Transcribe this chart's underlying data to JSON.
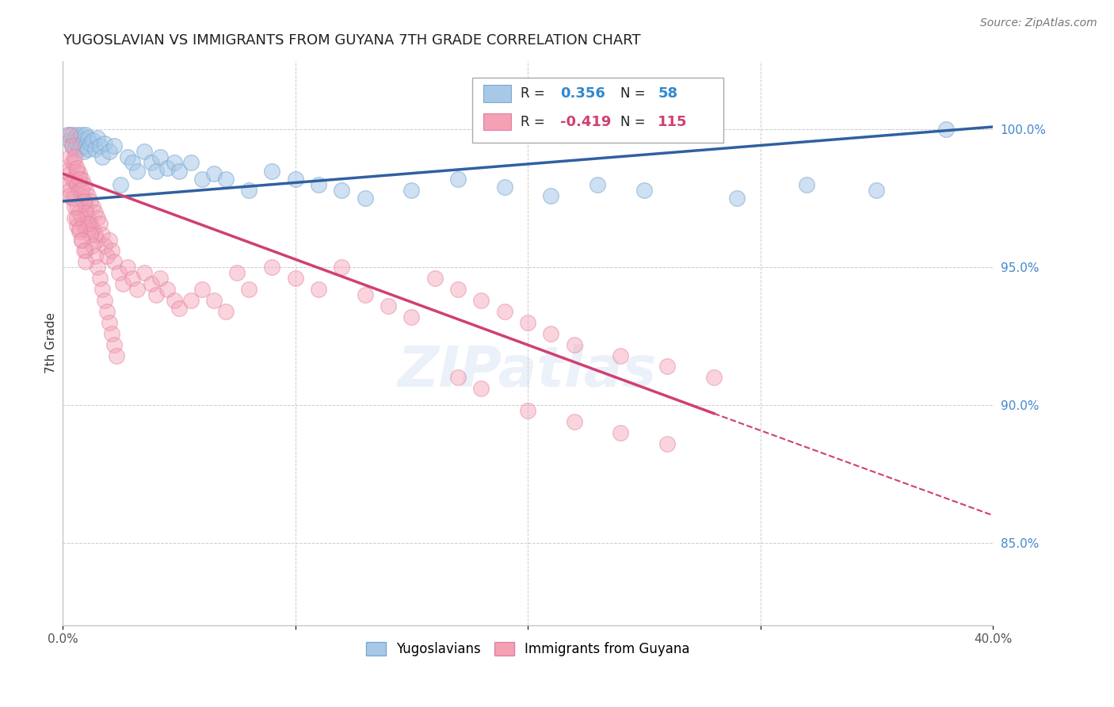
{
  "title": "YUGOSLAVIAN VS IMMIGRANTS FROM GUYANA 7TH GRADE CORRELATION CHART",
  "source_text": "Source: ZipAtlas.com",
  "ylabel": "7th Grade",
  "xlim": [
    0.0,
    0.4
  ],
  "ylim": [
    0.82,
    1.025
  ],
  "xticks": [
    0.0,
    0.1,
    0.2,
    0.3,
    0.4
  ],
  "xtick_labels": [
    "0.0%",
    "",
    "",
    "",
    "40.0%"
  ],
  "yticks": [
    0.85,
    0.9,
    0.95,
    1.0
  ],
  "ytick_labels": [
    "85.0%",
    "90.0%",
    "95.0%",
    "100.0%"
  ],
  "R_blue": 0.356,
  "N_blue": 58,
  "R_pink": -0.419,
  "N_pink": 115,
  "blue_color": "#a8c8e8",
  "pink_color": "#f4a0b5",
  "blue_line_color": "#3060a0",
  "pink_line_color": "#d04070",
  "legend_blue_label": "Yugoslavians",
  "legend_pink_label": "Immigrants from Guyana",
  "blue_line_x0": 0.0,
  "blue_line_y0": 0.974,
  "blue_line_x1": 0.4,
  "blue_line_y1": 1.001,
  "pink_line_solid_x0": 0.0,
  "pink_line_solid_y0": 0.984,
  "pink_line_solid_x1": 0.28,
  "pink_line_solid_y1": 0.897,
  "pink_line_dash_x0": 0.28,
  "pink_line_dash_y0": 0.897,
  "pink_line_dash_x1": 0.4,
  "pink_line_dash_y1": 0.86,
  "blue_x": [
    0.002,
    0.003,
    0.004,
    0.004,
    0.005,
    0.005,
    0.006,
    0.006,
    0.007,
    0.007,
    0.008,
    0.008,
    0.009,
    0.009,
    0.01,
    0.01,
    0.011,
    0.011,
    0.012,
    0.013,
    0.014,
    0.015,
    0.016,
    0.017,
    0.018,
    0.02,
    0.022,
    0.025,
    0.028,
    0.03,
    0.032,
    0.035,
    0.038,
    0.04,
    0.042,
    0.045,
    0.048,
    0.05,
    0.055,
    0.06,
    0.065,
    0.07,
    0.08,
    0.09,
    0.1,
    0.11,
    0.12,
    0.13,
    0.15,
    0.17,
    0.19,
    0.21,
    0.23,
    0.25,
    0.29,
    0.32,
    0.35,
    0.38
  ],
  "blue_y": [
    0.998,
    0.996,
    0.998,
    0.994,
    0.997,
    0.993,
    0.998,
    0.995,
    0.997,
    0.993,
    0.998,
    0.994,
    0.996,
    0.992,
    0.998,
    0.994,
    0.997,
    0.993,
    0.995,
    0.996,
    0.993,
    0.997,
    0.994,
    0.99,
    0.995,
    0.992,
    0.994,
    0.98,
    0.99,
    0.988,
    0.985,
    0.992,
    0.988,
    0.985,
    0.99,
    0.986,
    0.988,
    0.985,
    0.988,
    0.982,
    0.984,
    0.982,
    0.978,
    0.985,
    0.982,
    0.98,
    0.978,
    0.975,
    0.978,
    0.982,
    0.979,
    0.976,
    0.98,
    0.978,
    0.975,
    0.98,
    0.978,
    1.0
  ],
  "pink_x": [
    0.002,
    0.002,
    0.003,
    0.003,
    0.003,
    0.004,
    0.004,
    0.004,
    0.005,
    0.005,
    0.005,
    0.005,
    0.006,
    0.006,
    0.006,
    0.006,
    0.007,
    0.007,
    0.007,
    0.007,
    0.008,
    0.008,
    0.008,
    0.008,
    0.009,
    0.009,
    0.009,
    0.01,
    0.01,
    0.01,
    0.01,
    0.011,
    0.011,
    0.012,
    0.012,
    0.013,
    0.013,
    0.014,
    0.014,
    0.015,
    0.015,
    0.016,
    0.017,
    0.018,
    0.019,
    0.02,
    0.021,
    0.022,
    0.024,
    0.026,
    0.028,
    0.03,
    0.032,
    0.035,
    0.038,
    0.04,
    0.042,
    0.045,
    0.048,
    0.05,
    0.055,
    0.06,
    0.065,
    0.07,
    0.075,
    0.08,
    0.09,
    0.1,
    0.11,
    0.12,
    0.13,
    0.14,
    0.15,
    0.16,
    0.17,
    0.18,
    0.19,
    0.2,
    0.21,
    0.22,
    0.24,
    0.26,
    0.28,
    0.003,
    0.004,
    0.005,
    0.006,
    0.007,
    0.008,
    0.009,
    0.01,
    0.011,
    0.012,
    0.013,
    0.014,
    0.015,
    0.016,
    0.017,
    0.018,
    0.019,
    0.02,
    0.021,
    0.022,
    0.023,
    0.17,
    0.18,
    0.2,
    0.22,
    0.24,
    0.26,
    0.003,
    0.005,
    0.006,
    0.007,
    0.008,
    0.009,
    0.01
  ],
  "pink_y": [
    0.985,
    0.98,
    0.99,
    0.984,
    0.978,
    0.988,
    0.982,
    0.975,
    0.988,
    0.982,
    0.975,
    0.968,
    0.985,
    0.98,
    0.972,
    0.965,
    0.984,
    0.978,
    0.97,
    0.963,
    0.982,
    0.976,
    0.968,
    0.96,
    0.98,
    0.974,
    0.966,
    0.978,
    0.972,
    0.964,
    0.956,
    0.976,
    0.968,
    0.974,
    0.966,
    0.972,
    0.964,
    0.97,
    0.962,
    0.968,
    0.96,
    0.966,
    0.962,
    0.958,
    0.954,
    0.96,
    0.956,
    0.952,
    0.948,
    0.944,
    0.95,
    0.946,
    0.942,
    0.948,
    0.944,
    0.94,
    0.946,
    0.942,
    0.938,
    0.935,
    0.938,
    0.942,
    0.938,
    0.934,
    0.948,
    0.942,
    0.95,
    0.946,
    0.942,
    0.95,
    0.94,
    0.936,
    0.932,
    0.946,
    0.942,
    0.938,
    0.934,
    0.93,
    0.926,
    0.922,
    0.918,
    0.914,
    0.91,
    0.998,
    0.994,
    0.99,
    0.986,
    0.982,
    0.978,
    0.974,
    0.97,
    0.966,
    0.962,
    0.958,
    0.954,
    0.95,
    0.946,
    0.942,
    0.938,
    0.934,
    0.93,
    0.926,
    0.922,
    0.918,
    0.91,
    0.906,
    0.898,
    0.894,
    0.89,
    0.886,
    0.976,
    0.972,
    0.968,
    0.964,
    0.96,
    0.956,
    0.952
  ]
}
